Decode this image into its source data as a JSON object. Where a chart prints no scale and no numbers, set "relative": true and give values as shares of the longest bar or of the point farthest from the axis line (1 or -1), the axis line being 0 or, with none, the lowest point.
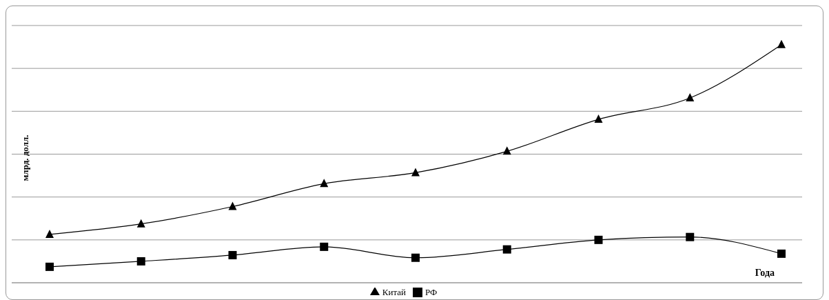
{
  "chart_data": {
    "type": "line",
    "relative": true,
    "xlabel": "Года",
    "ylabel": "млрд. долл.",
    "categories": [
      null,
      null,
      null,
      null,
      null,
      null,
      null,
      null,
      null
    ],
    "series": [
      {
        "name": "Китай",
        "color": "#000000",
        "marker": "triangle",
        "values": [
          0.203,
          0.247,
          0.32,
          0.416,
          0.462,
          0.552,
          0.686,
          0.776,
          1
        ]
      },
      {
        "name": "РФ",
        "color": "#000000",
        "marker": "square",
        "values": [
          0.067,
          0.09,
          0.116,
          0.151,
          0.105,
          0.14,
          0.18,
          0.192,
          0.122
        ]
      }
    ],
    "grid": "y",
    "legend": "bottom",
    "line_style": "solid"
  }
}
